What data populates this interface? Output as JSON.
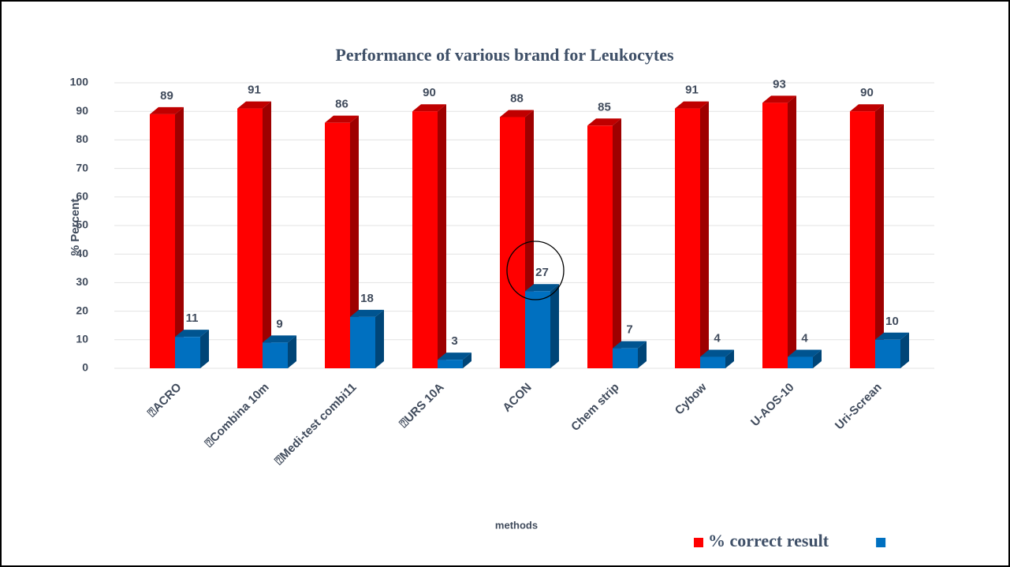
{
  "chart_data": {
    "type": "bar3d",
    "title": "Performance of various brand for Leukocytes",
    "y_label": "% Percent",
    "x_label": "methods",
    "categories": [
      "⍰ACRO",
      "⍰Combina 10m",
      "⍰Medi-test combi11",
      "⍰URS 10A",
      "ACON",
      "Chem strip",
      "Cybow",
      "U-AOS-10",
      "Uri-Screan"
    ],
    "series": [
      {
        "name": "% correct result",
        "color": "#ff0000",
        "values": [
          89,
          91,
          86,
          90,
          88,
          85,
          91,
          93,
          90
        ]
      },
      {
        "color": "#0070c0",
        "values": [
          11,
          9,
          18,
          3,
          27,
          7,
          4,
          4,
          10
        ]
      }
    ],
    "ylim": [
      0,
      100
    ],
    "yticks": [
      0,
      10,
      20,
      30,
      40,
      50,
      60,
      70,
      80,
      90,
      100
    ],
    "grid": true,
    "legend": "bottom-right"
  }
}
